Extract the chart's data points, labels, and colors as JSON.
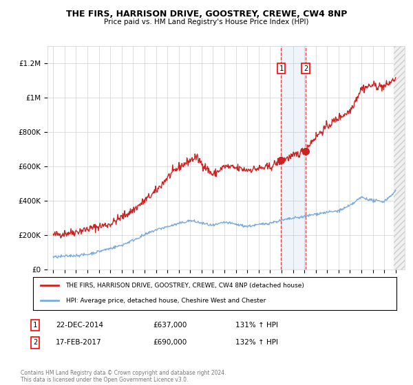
{
  "title": "THE FIRS, HARRISON DRIVE, GOOSTREY, CREWE, CW4 8NP",
  "subtitle": "Price paid vs. HM Land Registry's House Price Index (HPI)",
  "ylim": [
    0,
    1300000
  ],
  "yticks": [
    0,
    200000,
    400000,
    600000,
    800000,
    1000000,
    1200000
  ],
  "ytick_labels": [
    "£0",
    "£200K",
    "£400K",
    "£600K",
    "£800K",
    "£1M",
    "£1.2M"
  ],
  "hpi_color": "#7aabdc",
  "price_color": "#cc2222",
  "sale1_date": "22-DEC-2014",
  "sale1_price": 637000,
  "sale1_hpi_pct": "131%",
  "sale2_date": "17-FEB-2017",
  "sale2_price": 690000,
  "sale2_hpi_pct": "132%",
  "legend_label_red": "THE FIRS, HARRISON DRIVE, GOOSTREY, CREWE, CW4 8NP (detached house)",
  "legend_label_blue": "HPI: Average price, detached house, Cheshire West and Chester",
  "footnote": "Contains HM Land Registry data © Crown copyright and database right 2024.\nThis data is licensed under the Open Government Licence v3.0.",
  "background_color": "#ffffff",
  "sale1_x": 2014.97,
  "sale2_x": 2017.12,
  "xlim_left": 1994.5,
  "xlim_right": 2025.8
}
